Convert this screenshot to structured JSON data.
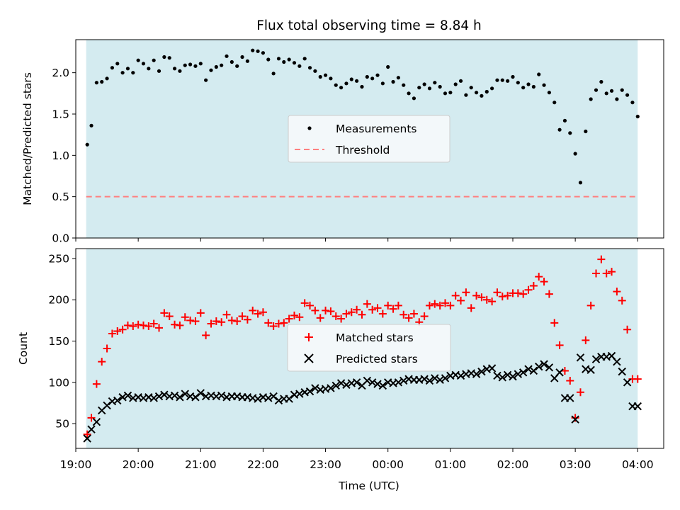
{
  "chart_data": {
    "title": "Flux total observing time = 8.84 h",
    "shared_x": {
      "label": "Time (UTC)",
      "start": "19:00",
      "end": "04:25",
      "tick_labels": [
        "19:00",
        "20:00",
        "21:00",
        "22:00",
        "23:00",
        "00:00",
        "01:00",
        "02:00",
        "03:00",
        "04:00"
      ],
      "observing_window": [
        "19:10",
        "04:00"
      ],
      "observing_window_color": "#add8e6"
    },
    "panels": [
      {
        "type": "scatter",
        "ylabel": "Matched/Predicted stars",
        "ylim": [
          0,
          2.4
        ],
        "yticks": [
          "0.0",
          "0.5",
          "1.0",
          "1.5",
          "2.0"
        ],
        "legend": {
          "placement": "center"
        },
        "series": [
          {
            "name": "Measurements",
            "marker": "dot",
            "color": "#000000",
            "x": [
              "19:11",
              "19:15",
              "19:20",
              "19:25",
              "19:30",
              "19:35",
              "19:40",
              "19:45",
              "19:50",
              "19:55",
              "20:00",
              "20:05",
              "20:10",
              "20:15",
              "20:20",
              "20:25",
              "20:30",
              "20:35",
              "20:40",
              "20:45",
              "20:50",
              "20:55",
              "21:00",
              "21:05",
              "21:10",
              "21:15",
              "21:20",
              "21:25",
              "21:30",
              "21:35",
              "21:40",
              "21:45",
              "21:50",
              "21:55",
              "22:00",
              "22:05",
              "22:10",
              "22:15",
              "22:20",
              "22:25",
              "22:30",
              "22:35",
              "22:40",
              "22:45",
              "22:50",
              "22:55",
              "23:00",
              "23:05",
              "23:10",
              "23:15",
              "23:20",
              "23:25",
              "23:30",
              "23:35",
              "23:40",
              "23:45",
              "23:50",
              "23:55",
              "00:00",
              "00:05",
              "00:10",
              "00:15",
              "00:20",
              "00:25",
              "00:30",
              "00:35",
              "00:40",
              "00:45",
              "00:50",
              "00:55",
              "01:00",
              "01:05",
              "01:10",
              "01:15",
              "01:20",
              "01:25",
              "01:30",
              "01:35",
              "01:40",
              "01:45",
              "01:50",
              "01:55",
              "02:00",
              "02:05",
              "02:10",
              "02:15",
              "02:20",
              "02:25",
              "02:30",
              "02:35",
              "02:40",
              "02:45",
              "02:50",
              "02:55",
              "03:00",
              "03:05",
              "03:10",
              "03:15",
              "03:20",
              "03:25",
              "03:30",
              "03:35",
              "03:40",
              "03:45",
              "03:50",
              "03:55",
              "04:00"
            ],
            "y": [
              1.13,
              1.36,
              1.88,
              1.89,
              1.93,
              2.06,
              2.11,
              2.0,
              2.05,
              2.0,
              2.15,
              2.11,
              2.05,
              2.15,
              2.02,
              2.19,
              2.18,
              2.05,
              2.02,
              2.09,
              2.1,
              2.08,
              2.11,
              1.91,
              2.03,
              2.07,
              2.09,
              2.2,
              2.13,
              2.08,
              2.19,
              2.14,
              2.27,
              2.26,
              2.24,
              2.16,
              1.99,
              2.17,
              2.13,
              2.16,
              2.12,
              2.08,
              2.17,
              2.06,
              2.02,
              1.95,
              1.97,
              1.93,
              1.85,
              1.82,
              1.87,
              1.92,
              1.9,
              1.83,
              1.95,
              1.93,
              1.97,
              1.87,
              2.07,
              1.89,
              1.94,
              1.85,
              1.75,
              1.69,
              1.82,
              1.86,
              1.81,
              1.88,
              1.83,
              1.75,
              1.76,
              1.86,
              1.9,
              1.73,
              1.82,
              1.76,
              1.72,
              1.77,
              1.81,
              1.91,
              1.91,
              1.9,
              1.95,
              1.88,
              1.82,
              1.86,
              1.83,
              1.98,
              1.85,
              1.76,
              1.64,
              1.31,
              1.42,
              1.27,
              1.02,
              0.67,
              1.29,
              1.68,
              1.79,
              1.89,
              1.75,
              1.78,
              1.68,
              1.79,
              1.73,
              1.64,
              1.47
            ]
          },
          {
            "name": "Threshold",
            "type": "line",
            "style": "dashed",
            "color": "#ff8080",
            "x": [
              "19:10",
              "04:00"
            ],
            "y": [
              0.5,
              0.5
            ]
          }
        ]
      },
      {
        "type": "scatter",
        "ylabel": "Count",
        "ylim": [
          20,
          262
        ],
        "yticks": [
          "50",
          "100",
          "150",
          "200",
          "250"
        ],
        "legend": {
          "placement": "center"
        },
        "series": [
          {
            "name": "Matched stars",
            "marker": "plus",
            "color": "#ff0000",
            "x": [
              "19:11",
              "19:15",
              "19:20",
              "19:25",
              "19:30",
              "19:35",
              "19:40",
              "19:45",
              "19:50",
              "19:55",
              "20:00",
              "20:05",
              "20:10",
              "20:15",
              "20:20",
              "20:25",
              "20:30",
              "20:35",
              "20:40",
              "20:45",
              "20:50",
              "20:55",
              "21:00",
              "21:05",
              "21:10",
              "21:15",
              "21:20",
              "21:25",
              "21:30",
              "21:35",
              "21:40",
              "21:45",
              "21:50",
              "21:55",
              "22:00",
              "22:05",
              "22:10",
              "22:15",
              "22:20",
              "22:25",
              "22:30",
              "22:35",
              "22:40",
              "22:45",
              "22:50",
              "22:55",
              "23:00",
              "23:05",
              "23:10",
              "23:15",
              "23:20",
              "23:25",
              "23:30",
              "23:35",
              "23:40",
              "23:45",
              "23:50",
              "23:55",
              "00:00",
              "00:05",
              "00:10",
              "00:15",
              "00:20",
              "00:25",
              "00:30",
              "00:35",
              "00:40",
              "00:45",
              "00:50",
              "00:55",
              "01:00",
              "01:05",
              "01:10",
              "01:15",
              "01:20",
              "01:25",
              "01:30",
              "01:35",
              "01:40",
              "01:45",
              "01:50",
              "01:55",
              "02:00",
              "02:05",
              "02:10",
              "02:15",
              "02:20",
              "02:25",
              "02:30",
              "02:35",
              "02:40",
              "02:45",
              "02:50",
              "02:55",
              "03:00",
              "03:05",
              "03:10",
              "03:15",
              "03:20",
              "03:25",
              "03:30",
              "03:35",
              "03:40",
              "03:45",
              "03:50",
              "03:55",
              "04:00"
            ],
            "y": [
              37,
              57,
              98,
              125,
              141,
              159,
              162,
              164,
              169,
              168,
              170,
              169,
              168,
              171,
              166,
              184,
              180,
              170,
              169,
              179,
              175,
              174,
              184,
              157,
              171,
              174,
              173,
              182,
              175,
              174,
              180,
              176,
              187,
              183,
              185,
              172,
              168,
              171,
              172,
              177,
              181,
              179,
              196,
              193,
              187,
              178,
              187,
              186,
              180,
              177,
              183,
              185,
              188,
              182,
              195,
              188,
              190,
              183,
              193,
              189,
              193,
              182,
              178,
              183,
              173,
              180,
              193,
              195,
              193,
              196,
              193,
              205,
              199,
              209,
              190,
              205,
              203,
              200,
              198,
              209,
              204,
              205,
              208,
              208,
              207,
              212,
              217,
              228,
              222,
              207,
              172,
              145,
              114,
              102,
              57,
              88,
              151,
              193,
              232,
              249,
              232,
              234,
              210,
              199,
              164,
              104,
              104
            ]
          },
          {
            "name": "Predicted stars",
            "marker": "x",
            "color": "#000000",
            "x": [
              "19:11",
              "19:15",
              "19:20",
              "19:25",
              "19:30",
              "19:35",
              "19:40",
              "19:45",
              "19:50",
              "19:55",
              "20:00",
              "20:05",
              "20:10",
              "20:15",
              "20:20",
              "20:25",
              "20:30",
              "20:35",
              "20:40",
              "20:45",
              "20:50",
              "20:55",
              "21:00",
              "21:05",
              "21:10",
              "21:15",
              "21:20",
              "21:25",
              "21:30",
              "21:35",
              "21:40",
              "21:45",
              "21:50",
              "21:55",
              "22:00",
              "22:05",
              "22:10",
              "22:15",
              "22:20",
              "22:25",
              "22:30",
              "22:35",
              "22:40",
              "22:45",
              "22:50",
              "22:55",
              "23:00",
              "23:05",
              "23:10",
              "23:15",
              "23:20",
              "23:25",
              "23:30",
              "23:35",
              "23:40",
              "23:45",
              "23:50",
              "23:55",
              "00:00",
              "00:05",
              "00:10",
              "00:15",
              "00:20",
              "00:25",
              "00:30",
              "00:35",
              "00:40",
              "00:45",
              "00:50",
              "00:55",
              "01:00",
              "01:05",
              "01:10",
              "01:15",
              "01:20",
              "01:25",
              "01:30",
              "01:35",
              "01:40",
              "01:45",
              "01:50",
              "01:55",
              "02:00",
              "02:05",
              "02:10",
              "02:15",
              "02:20",
              "02:25",
              "02:30",
              "02:35",
              "02:40",
              "02:45",
              "02:50",
              "02:55",
              "03:00",
              "03:05",
              "03:10",
              "03:15",
              "03:20",
              "03:25",
              "03:30",
              "03:35",
              "03:40",
              "03:45",
              "03:50",
              "03:55",
              "04:00"
            ],
            "y": [
              32,
              43,
              52,
              66,
              72,
              77,
              78,
              82,
              84,
              81,
              82,
              81,
              82,
              81,
              83,
              85,
              83,
              84,
              82,
              86,
              83,
              82,
              87,
              83,
              84,
              83,
              84,
              82,
              83,
              83,
              82,
              82,
              81,
              80,
              82,
              81,
              83,
              78,
              80,
              80,
              85,
              86,
              88,
              89,
              93,
              91,
              92,
              93,
              96,
              99,
              97,
              99,
              100,
              96,
              102,
              100,
              98,
              96,
              100,
              99,
              100,
              102,
              104,
              103,
              103,
              104,
              102,
              105,
              103,
              105,
              108,
              109,
              108,
              110,
              111,
              110,
              113,
              116,
              117,
              108,
              106,
              109,
              107,
              110,
              112,
              116,
              114,
              119,
              122,
              118,
              105,
              112,
              81,
              81,
              55,
              130,
              116,
              115,
              128,
              131,
              131,
              132,
              125,
              113,
              100,
              71,
              71
            ]
          }
        ]
      }
    ]
  }
}
